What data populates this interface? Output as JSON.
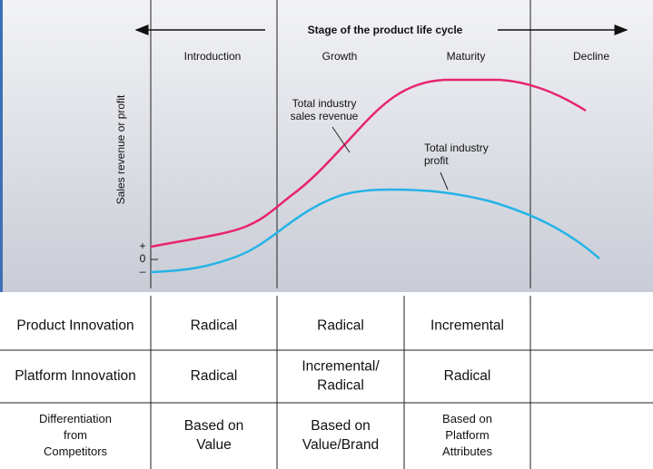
{
  "header": {
    "title": "Stage of the product life cycle"
  },
  "stages": [
    "Introduction",
    "Growth",
    "Maturity",
    "Decline"
  ],
  "y_axis_label": "Sales revenue or profit",
  "axis_marks": [
    "+",
    "0",
    "–"
  ],
  "annotations": [
    [
      "Total industry",
      "sales revenue"
    ],
    [
      "Total industry",
      "profit"
    ]
  ],
  "table": {
    "rows": [
      [
        [
          "Product Innovation"
        ],
        [
          "Radical"
        ],
        [
          "Radical"
        ],
        [
          "Incremental"
        ],
        []
      ],
      [
        [
          "Platform Innovation"
        ],
        [
          "Radical"
        ],
        [
          "Incremental/",
          "Radical"
        ],
        [
          "Radical"
        ],
        []
      ],
      [
        [
          "Differentiation",
          "from",
          "Competitors"
        ],
        [
          "Based on",
          "Value"
        ],
        [
          "Based on",
          "Value/Brand"
        ],
        [
          "Based on",
          "Platform",
          "Attributes"
        ],
        []
      ]
    ]
  }
}
